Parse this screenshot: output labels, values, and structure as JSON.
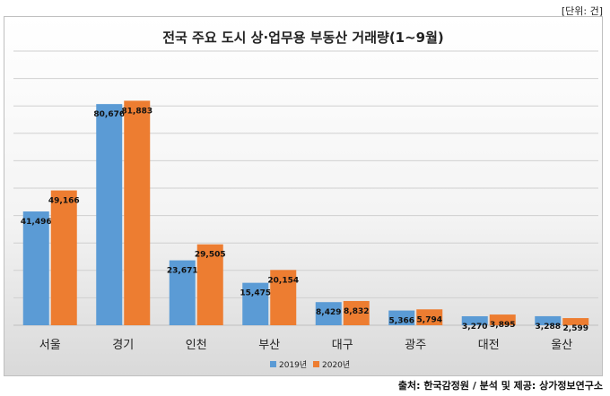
{
  "unit_label": "[단위: 건]",
  "source": "출처: 한국감정원 / 분석 및 제공: 상가정보연구소",
  "colors": {
    "s2019": "#5b9bd5",
    "s2020": "#ed7d31",
    "grid": "#d0d0d0"
  },
  "chart_data": {
    "type": "bar",
    "title": "전국 주요 도시 상·업무용 부동산 거래량(1~9월)",
    "categories": [
      "서울",
      "경기",
      "인천",
      "부산",
      "대구",
      "광주",
      "대전",
      "울산"
    ],
    "series": [
      {
        "name": "2019년",
        "values": [
          41496,
          80676,
          23671,
          15475,
          8429,
          5366,
          3270,
          3288
        ],
        "labels": [
          "41,496",
          "80,676",
          "23,671",
          "15,475",
          "8,429",
          "5,366",
          "3,270",
          "3,288"
        ]
      },
      {
        "name": "2020년",
        "values": [
          49166,
          81883,
          29505,
          20154,
          8832,
          5794,
          3895,
          2599
        ],
        "labels": [
          "49,166",
          "81,883",
          "29,505",
          "20,154",
          "8,832",
          "5,794",
          "3,895",
          "2,599"
        ]
      }
    ],
    "ylim": [
      0,
      100000
    ],
    "grid": true,
    "legend_position": "bottom-center"
  }
}
